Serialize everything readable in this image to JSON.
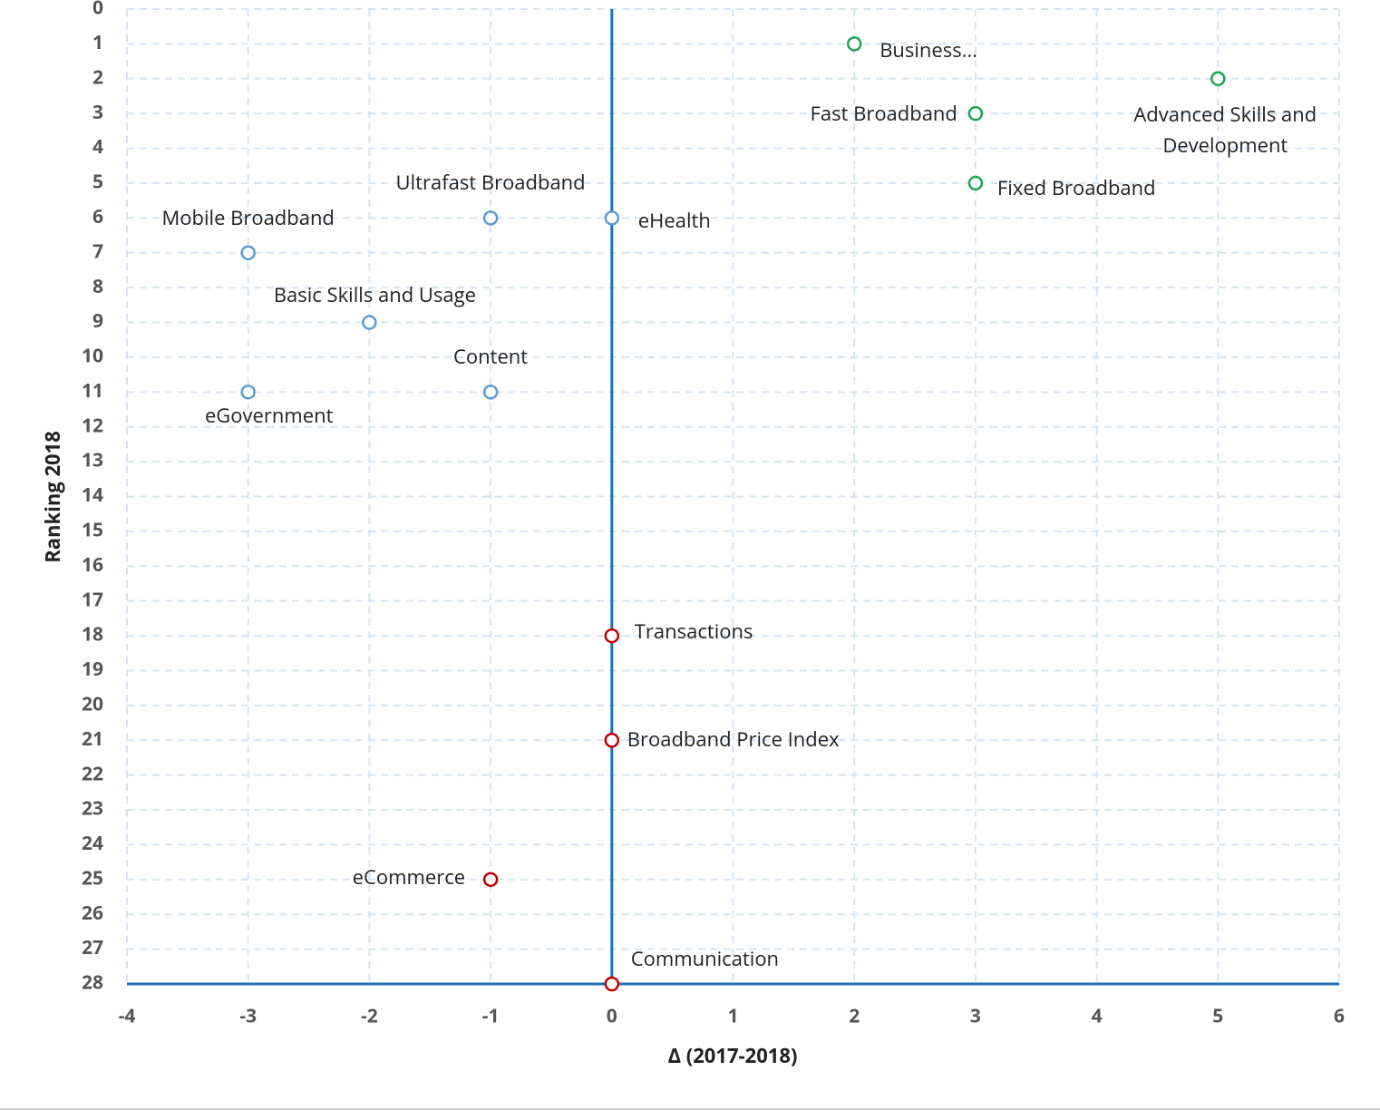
{
  "chart_data": {
    "type": "scatter",
    "xlabel": "Δ (2017-2018)",
    "ylabel": "Ranking 2018",
    "x": [
      2,
      5,
      3,
      3,
      -1,
      0,
      -3,
      -2,
      -1,
      -3,
      0,
      0,
      -1,
      0
    ],
    "y": [
      1,
      2,
      3,
      5,
      6,
      6,
      7,
      9,
      11,
      11,
      18,
      21,
      25,
      28
    ],
    "labels": [
      "Business...",
      "Advanced Skills and Development",
      "Fast Broadband",
      "Fixed Broadband",
      "Ultrafast Broadband",
      "eHealth",
      "Mobile Broadband",
      "Basic Skills and Usage",
      "Content",
      "eGovernment",
      "Transactions",
      "Broadband Price Index",
      "eCommerce",
      "Communication"
    ],
    "colors": [
      "#1ea453",
      "#1ea453",
      "#1ea453",
      "#1ea453",
      "#5b9bd5",
      "#5b9bd5",
      "#5b9bd5",
      "#5b9bd5",
      "#5b9bd5",
      "#5b9bd5",
      "#c00000",
      "#c00000",
      "#c00000",
      "#c00000"
    ],
    "xlim": [
      -4,
      6
    ],
    "xticks": [
      -4,
      -3,
      -2,
      -1,
      0,
      1,
      2,
      3,
      4,
      5,
      6
    ],
    "ylim": [
      0,
      28
    ],
    "yticks": [
      0,
      1,
      2,
      3,
      4,
      5,
      6,
      7,
      8,
      9,
      10,
      11,
      12,
      13,
      14,
      15,
      16,
      17,
      18,
      19,
      20,
      21,
      22,
      23,
      24,
      25,
      26,
      27,
      28
    ],
    "y_inverted": true,
    "grid": true,
    "axis_color": "#1f6fb5"
  }
}
